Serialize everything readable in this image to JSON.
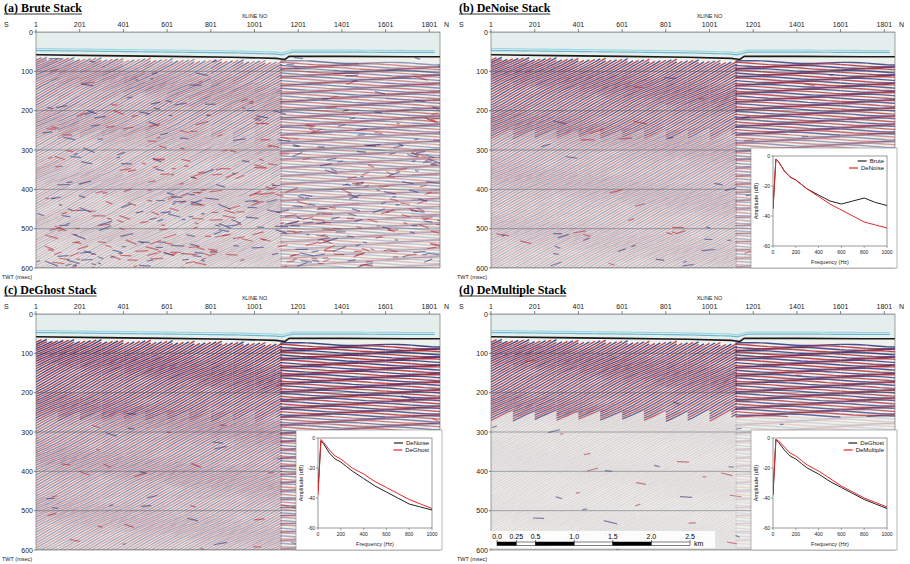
{
  "chart_data": [
    {
      "type": "seismic",
      "title": "(a) Brute Stack",
      "x_label": "XLINE NO",
      "x_start_label": "S",
      "x_end_label": "N",
      "y_label": "TWT (msec)",
      "xlim": [
        1,
        1850
      ],
      "xticks": [
        1,
        201,
        401,
        601,
        801,
        1001,
        1201,
        1401,
        1601,
        1801
      ],
      "ylim": [
        0,
        600
      ],
      "yticks": [
        0,
        100,
        200,
        300,
        400,
        500,
        600
      ],
      "grid": true,
      "seafloor": {
        "x": [
          1,
          300,
          600,
          900,
          1100,
          1140,
          1160,
          1400,
          1700,
          1850
        ],
        "values": [
          58,
          60,
          62,
          64,
          67,
          70,
          62,
          62,
          63,
          63
        ]
      }
    },
    {
      "type": "seismic",
      "title": "(b) DeNoise Stack",
      "x_label": "XLINE NO",
      "x_start_label": "S",
      "x_end_label": "N",
      "y_label": "TWT (msec)",
      "xlim": [
        1,
        1850
      ],
      "xticks": [
        1,
        201,
        401,
        601,
        801,
        1001,
        1201,
        1401,
        1601,
        1801
      ],
      "ylim": [
        0,
        600
      ],
      "yticks": [
        0,
        100,
        200,
        300,
        400,
        500,
        600
      ],
      "grid": true,
      "seafloor": {
        "x": [
          1,
          300,
          600,
          900,
          1100,
          1140,
          1160,
          1400,
          1700,
          1850
        ],
        "values": [
          58,
          60,
          62,
          64,
          67,
          70,
          62,
          62,
          63,
          63
        ]
      },
      "inset": {
        "type": "line",
        "x_label": "Frequency (Hz)",
        "y_label": "Amplitude (dB)",
        "x": [
          0,
          25,
          50,
          100,
          150,
          200,
          250,
          300,
          400,
          500,
          600,
          700,
          800,
          900,
          1000
        ],
        "xlim": [
          0,
          1000
        ],
        "xticks": [
          0,
          200,
          400,
          600,
          800,
          1000
        ],
        "ylim": [
          -60,
          0
        ],
        "yticks": [
          -60,
          -40,
          -20,
          0
        ],
        "legend": "upper right",
        "series": [
          {
            "name": "Brute",
            "color": "#222222",
            "values": [
              -35,
              -2,
              -4,
              -10,
              -14,
              -16,
              -19,
              -22,
              -26,
              -30,
              -32,
              -30,
              -28,
              -31,
              -33
            ]
          },
          {
            "name": "DeNoise",
            "color": "#e8262a",
            "values": [
              -35,
              -2,
              -4,
              -10,
              -14,
              -16,
              -19,
              -22,
              -27,
              -32,
              -36,
              -40,
              -44,
              -46,
              -48
            ]
          }
        ]
      }
    },
    {
      "type": "seismic",
      "title": "(c) DeGhost Stack",
      "x_label": "XLINE NO",
      "x_start_label": "S",
      "x_end_label": "N",
      "y_label": "TWT (msec)",
      "xlim": [
        1,
        1850
      ],
      "xticks": [
        1,
        201,
        401,
        601,
        801,
        1001,
        1201,
        1401,
        1601,
        1801
      ],
      "ylim": [
        0,
        600
      ],
      "yticks": [
        0,
        100,
        200,
        300,
        400,
        500,
        600
      ],
      "grid": true,
      "seafloor": {
        "x": [
          1,
          300,
          600,
          900,
          1100,
          1140,
          1160,
          1400,
          1700,
          1850
        ],
        "values": [
          58,
          60,
          62,
          64,
          67,
          70,
          62,
          62,
          63,
          63
        ]
      },
      "inset": {
        "type": "line",
        "x_label": "Frequency (Hz)",
        "y_label": "Amplitude (dB)",
        "x": [
          0,
          25,
          50,
          100,
          150,
          200,
          250,
          300,
          400,
          500,
          600,
          700,
          800,
          900,
          1000
        ],
        "xlim": [
          0,
          1000
        ],
        "xticks": [
          0,
          200,
          400,
          600,
          800,
          1000
        ],
        "ylim": [
          -60,
          0
        ],
        "yticks": [
          -60,
          -40,
          -20,
          0
        ],
        "legend": "upper right",
        "series": [
          {
            "name": "DeNoise",
            "color": "#222222",
            "values": [
              -35,
              -2,
              -4,
              -10,
              -14,
              -16,
              -19,
              -22,
              -27,
              -32,
              -36,
              -40,
              -44,
              -46,
              -48
            ]
          },
          {
            "name": "DeGhost",
            "color": "#e8262a",
            "values": [
              -38,
              -1,
              -3,
              -8,
              -12,
              -14,
              -17,
              -20,
              -24,
              -29,
              -33,
              -37,
              -41,
              -44,
              -47
            ]
          }
        ]
      }
    },
    {
      "type": "seismic",
      "title": "(d) DeMultiple Stack",
      "x_label": "XLINE NO",
      "x_start_label": "S",
      "x_end_label": "N",
      "y_label": "TWT (msec)",
      "xlim": [
        1,
        1850
      ],
      "xticks": [
        1,
        201,
        401,
        601,
        801,
        1001,
        1201,
        1401,
        1601,
        1801
      ],
      "ylim": [
        0,
        600
      ],
      "yticks": [
        0,
        100,
        200,
        300,
        400,
        500,
        600
      ],
      "grid": true,
      "seafloor": {
        "x": [
          1,
          300,
          600,
          900,
          1100,
          1140,
          1160,
          1400,
          1700,
          1850
        ],
        "values": [
          58,
          60,
          62,
          64,
          67,
          70,
          62,
          62,
          63,
          63
        ]
      },
      "scale_bar": {
        "ticks": [
          {
            "value": 0,
            "label": "0.0"
          },
          0.25,
          0.5,
          {
            "value": 1,
            "label": "1.0"
          },
          1.5,
          {
            "value": 2,
            "label": "2.0"
          },
          2.5
        ],
        "unit": "km"
      },
      "inset": {
        "type": "line",
        "x_label": "Frequency (Hz)",
        "y_label": "Amplitude (dB)",
        "x": [
          0,
          25,
          50,
          100,
          150,
          200,
          250,
          300,
          400,
          500,
          600,
          700,
          800,
          900,
          1000
        ],
        "xlim": [
          0,
          1000
        ],
        "xticks": [
          0,
          200,
          400,
          600,
          800,
          1000
        ],
        "ylim": [
          -60,
          0
        ],
        "yticks": [
          -60,
          -40,
          -20,
          0
        ],
        "legend": "upper right",
        "series": [
          {
            "name": "DeGhost",
            "color": "#222222",
            "values": [
              -38,
              -1,
              -3,
              -8,
              -12,
              -14,
              -17,
              -20,
              -24,
              -29,
              -33,
              -37,
              -41,
              -44,
              -47
            ]
          },
          {
            "name": "DeMultiple",
            "color": "#e8262a",
            "values": [
              -36,
              -1,
              -2,
              -6,
              -10,
              -12,
              -15,
              -18,
              -22,
              -27,
              -32,
              -36,
              -40,
              -43,
              -46
            ]
          }
        ]
      }
    }
  ]
}
